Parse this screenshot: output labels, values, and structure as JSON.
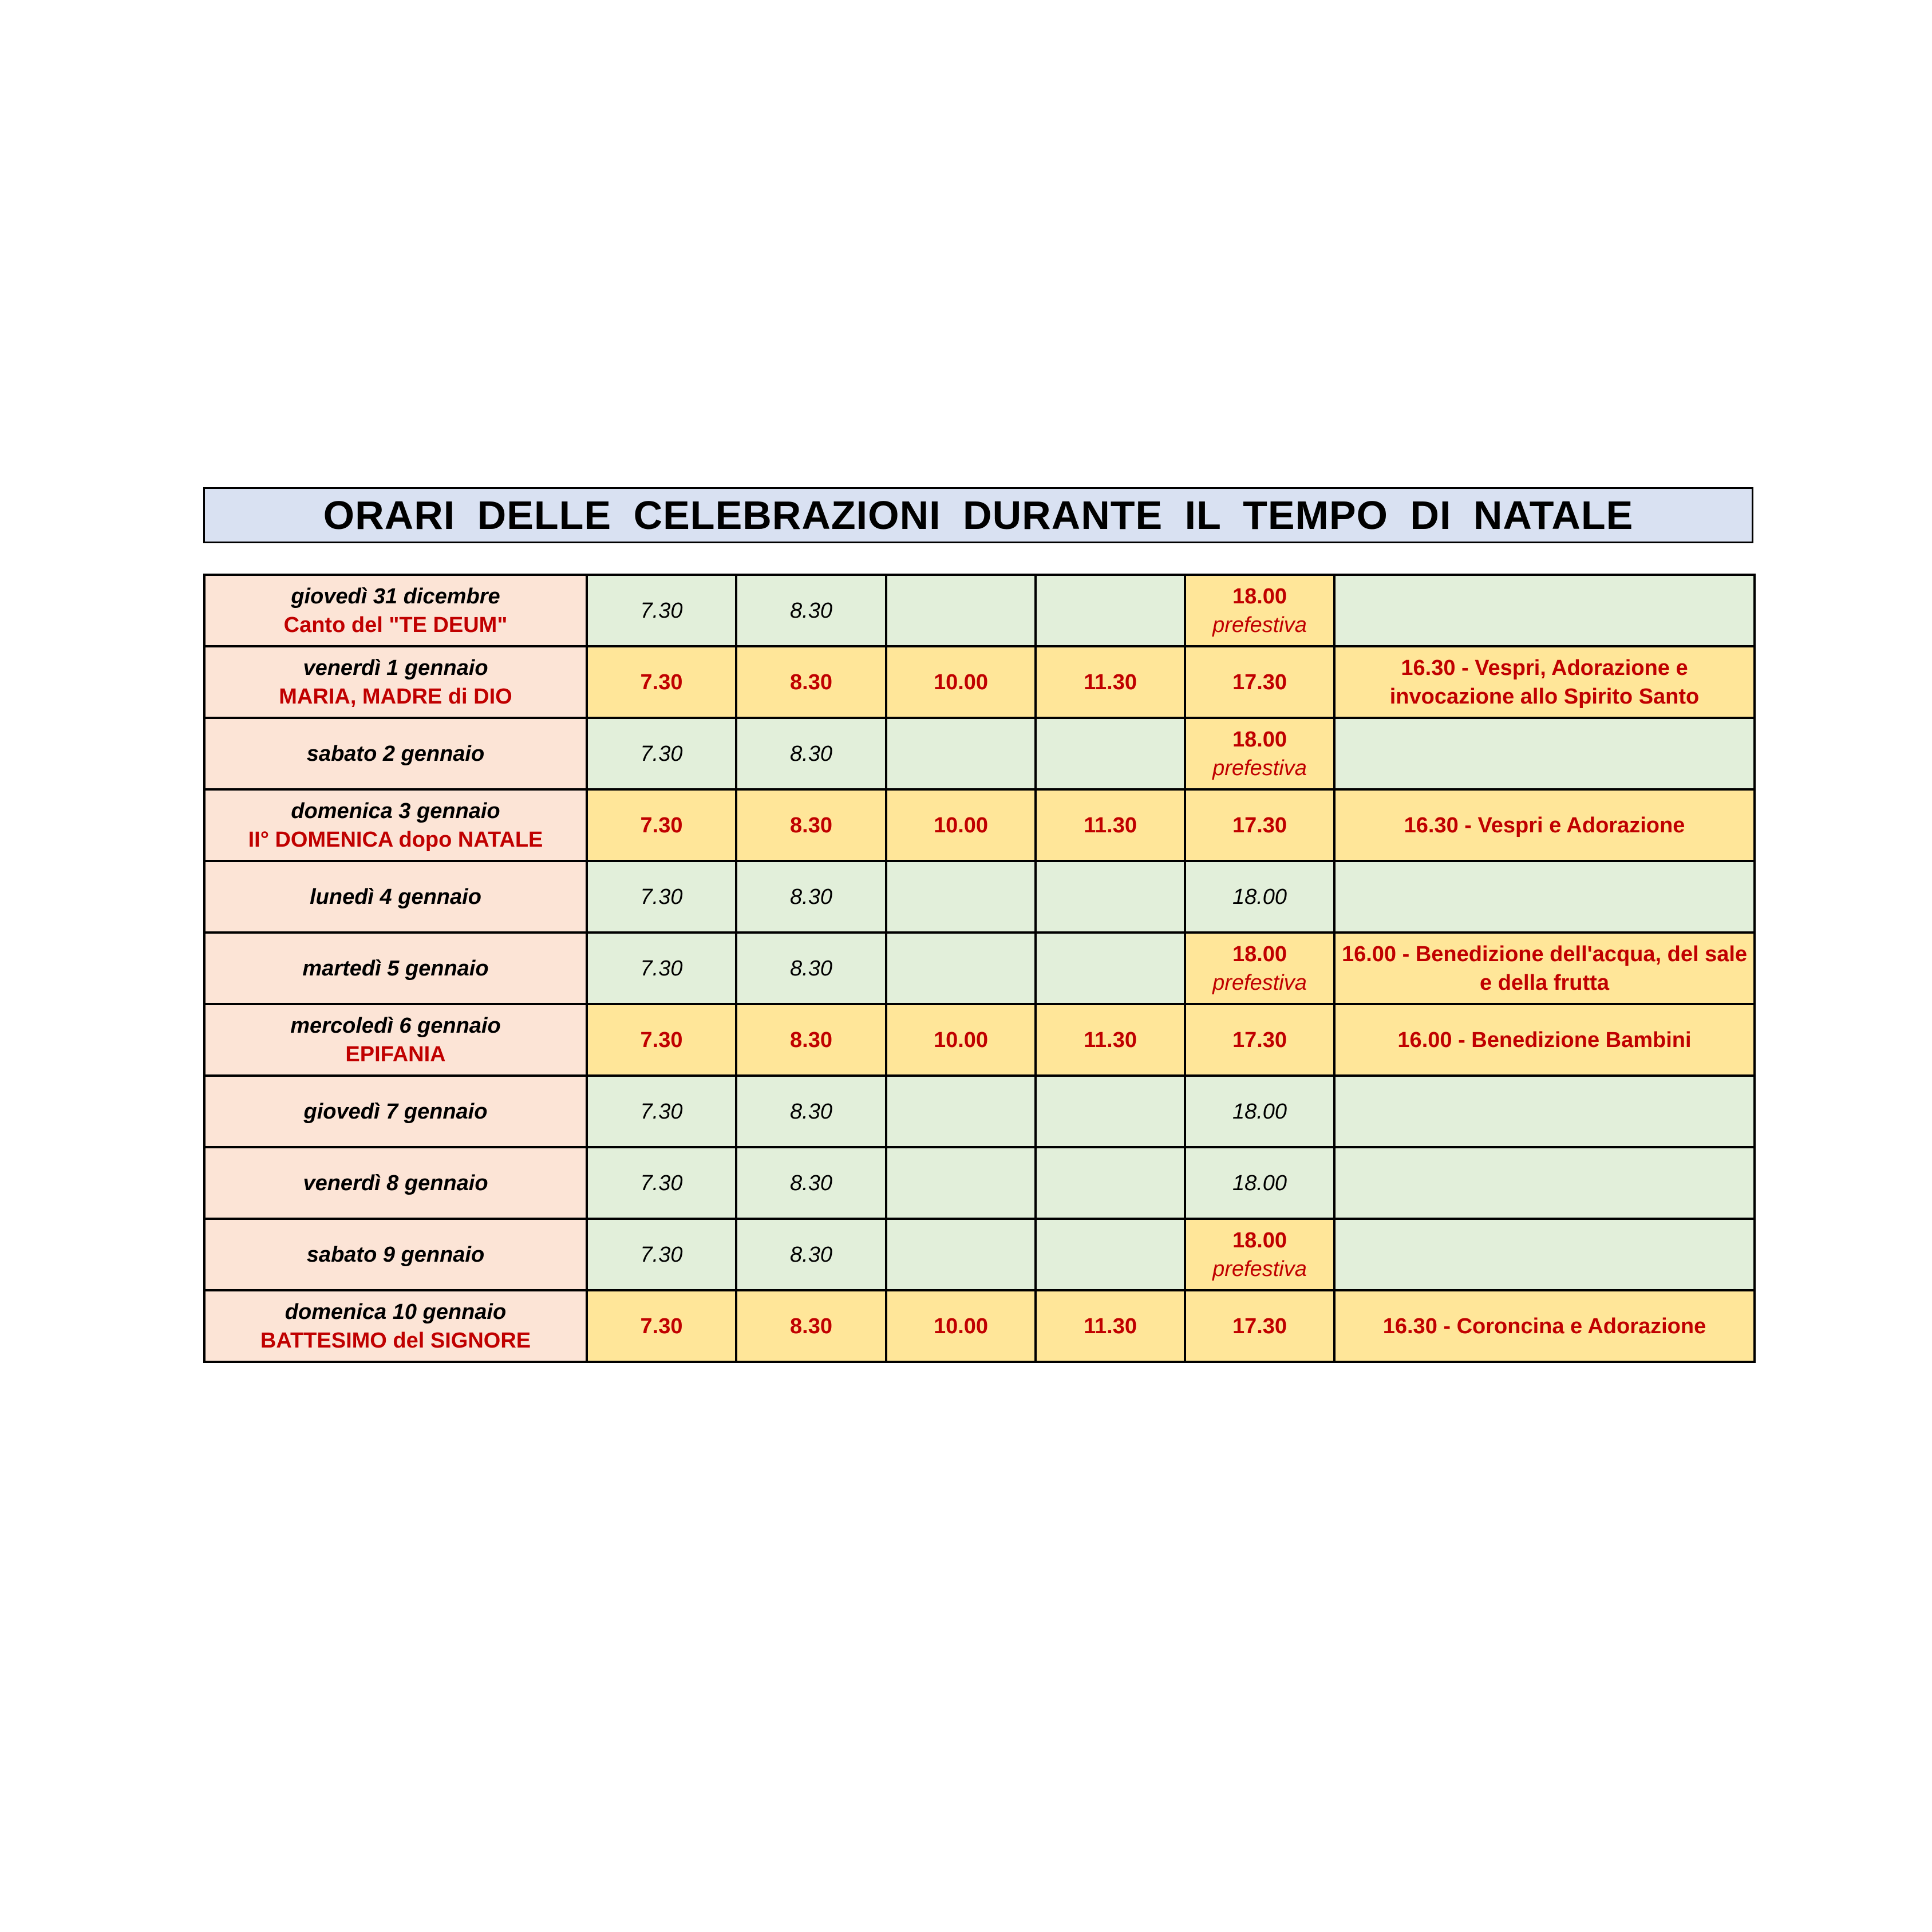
{
  "title": "ORARI  DELLE  CELEBRAZIONI  DURANTE  IL  TEMPO  DI  NATALE",
  "colors": {
    "title_bg": "#d9e1f2",
    "day_bg": "#fce4d6",
    "ferial_bg": "#e2efda",
    "festive_bg": "#ffe699",
    "accent_red": "#c00000"
  },
  "prefestiva_label": "prefestiva",
  "rows": [
    {
      "day": "giovedì  31  dicembre",
      "subtitle": "Canto del \"TE  DEUM\"",
      "festive": false,
      "times": [
        "7.30",
        "8.30",
        "",
        "",
        "18.00"
      ],
      "prefestiva": true,
      "note": ""
    },
    {
      "day": "venerdì  1  gennaio",
      "subtitle": "MARIA, MADRE  di  DIO",
      "festive": true,
      "times": [
        "7.30",
        "8.30",
        "10.00",
        "11.30",
        "17.30"
      ],
      "prefestiva": false,
      "note": "16.30 - Vespri, Adorazione e invocazione allo Spirito Santo"
    },
    {
      "day": "sabato  2  gennaio",
      "subtitle": "",
      "festive": false,
      "times": [
        "7.30",
        "8.30",
        "",
        "",
        "18.00"
      ],
      "prefestiva": true,
      "note": ""
    },
    {
      "day": "domenica  3  gennaio",
      "subtitle": "II° DOMENICA  dopo  NATALE",
      "festive": true,
      "times": [
        "7.30",
        "8.30",
        "10.00",
        "11.30",
        "17.30"
      ],
      "prefestiva": false,
      "note": "16.30 - Vespri e Adorazione"
    },
    {
      "day": "lunedì  4  gennaio",
      "subtitle": "",
      "festive": false,
      "times": [
        "7.30",
        "8.30",
        "",
        "",
        "18.00"
      ],
      "prefestiva": false,
      "note": ""
    },
    {
      "day": "martedì  5  gennaio",
      "subtitle": "",
      "festive": false,
      "times": [
        "7.30",
        "8.30",
        "",
        "",
        "18.00"
      ],
      "prefestiva": true,
      "note": "16.00 - Benedizione dell'acqua, del sale e della frutta"
    },
    {
      "day": "mercoledì  6  gennaio",
      "subtitle": "EPIFANIA",
      "festive": true,
      "times": [
        "7.30",
        "8.30",
        "10.00",
        "11.30",
        "17.30"
      ],
      "prefestiva": false,
      "note": "16.00 - Benedizione Bambini"
    },
    {
      "day": "giovedì  7  gennaio",
      "subtitle": "",
      "festive": false,
      "times": [
        "7.30",
        "8.30",
        "",
        "",
        "18.00"
      ],
      "prefestiva": false,
      "note": ""
    },
    {
      "day": "venerdì  8  gennaio",
      "subtitle": "",
      "festive": false,
      "times": [
        "7.30",
        "8.30",
        "",
        "",
        "18.00"
      ],
      "prefestiva": false,
      "note": ""
    },
    {
      "day": "sabato  9  gennaio",
      "subtitle": "",
      "festive": false,
      "times": [
        "7.30",
        "8.30",
        "",
        "",
        "18.00"
      ],
      "prefestiva": true,
      "note": ""
    },
    {
      "day": "domenica  10  gennaio",
      "subtitle": "BATTESIMO  del  SIGNORE",
      "festive": true,
      "times": [
        "7.30",
        "8.30",
        "10.00",
        "11.30",
        "17.30"
      ],
      "prefestiva": false,
      "note": "16.30 - Coroncina e Adorazione"
    }
  ]
}
